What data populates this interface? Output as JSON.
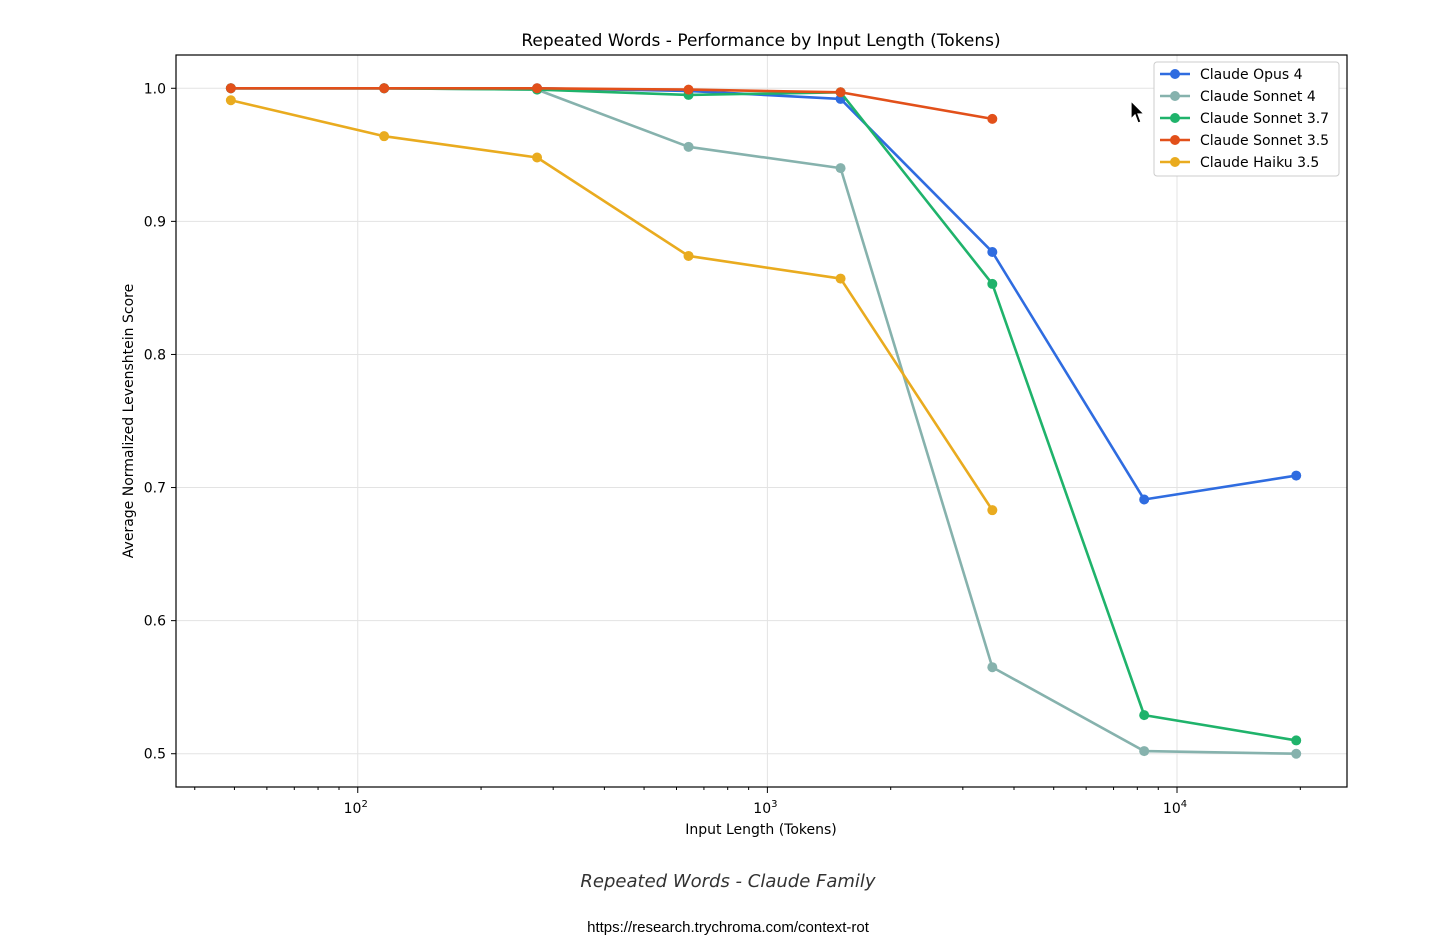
{
  "chart_data": {
    "type": "line",
    "title": "Repeated Words - Performance by Input Length (Tokens)",
    "xlabel": "Input Length (Tokens)",
    "ylabel": "Average Normalized Levenshtein Score",
    "xscale": "log",
    "xlim": [
      36,
      26000
    ],
    "ylim": [
      0.475,
      1.025
    ],
    "grid": true,
    "legend_position": "top-right",
    "x_tick_labels": [
      "10^2",
      "10^3",
      "10^4"
    ],
    "y_ticks": [
      0.5,
      0.6,
      0.7,
      0.8,
      0.9,
      1.0
    ],
    "y_tick_labels": [
      "0.5",
      "0.6",
      "0.7",
      "0.8",
      "0.9",
      "1.0"
    ],
    "series": [
      {
        "name": "Claude Opus 4",
        "color": "#2f6ce0",
        "x": [
          49,
          116,
          274,
          642,
          1509,
          3541,
          8315,
          19543
        ],
        "y": [
          1.0,
          1.0,
          1.0,
          0.998,
          0.992,
          0.877,
          0.691,
          0.709
        ]
      },
      {
        "name": "Claude Sonnet 4",
        "color": "#86b2ad",
        "x": [
          49,
          116,
          274,
          642,
          1509,
          3541,
          8315,
          19543
        ],
        "y": [
          1.0,
          1.0,
          0.999,
          0.956,
          0.94,
          0.565,
          0.502,
          0.5
        ]
      },
      {
        "name": "Claude Sonnet 3.7",
        "color": "#1fb36b",
        "x": [
          49,
          116,
          274,
          642,
          1509,
          3541,
          8315,
          19543
        ],
        "y": [
          1.0,
          1.0,
          0.999,
          0.995,
          0.997,
          0.853,
          0.529,
          0.51
        ]
      },
      {
        "name": "Claude Sonnet 3.5",
        "color": "#e2501a",
        "x": [
          49,
          116,
          274,
          642,
          1509,
          3541
        ],
        "y": [
          1.0,
          1.0,
          1.0,
          0.999,
          0.997,
          0.977
        ]
      },
      {
        "name": "Claude Haiku 3.5",
        "color": "#e9ab1f",
        "x": [
          49,
          116,
          274,
          642,
          1509,
          3541
        ],
        "y": [
          0.991,
          0.964,
          0.948,
          0.874,
          0.857,
          0.683
        ]
      }
    ]
  },
  "caption": "Repeated Words - Claude Family",
  "source_url": "https://research.trychroma.com/context-rot"
}
